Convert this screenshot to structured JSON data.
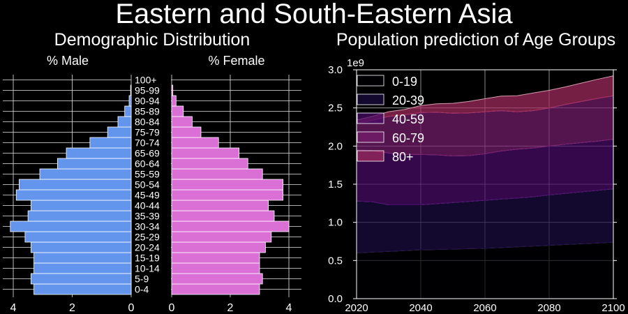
{
  "suptitle": "Eastern and South-Eastern Asia",
  "chart_data": [
    {
      "type": "bar",
      "title": "Demographic Distribution",
      "left_label": "% Male",
      "right_label": "% Female",
      "categories": [
        "0-4",
        "5-9",
        "10-14",
        "15-19",
        "20-24",
        "25-29",
        "30-34",
        "35-39",
        "40-44",
        "45-49",
        "50-54",
        "55-59",
        "60-64",
        "65-69",
        "70-74",
        "75-79",
        "80-84",
        "85-89",
        "90-94",
        "95-99",
        "100+"
      ],
      "series": [
        {
          "name": "% Male",
          "values": [
            3.3,
            3.4,
            3.3,
            3.3,
            3.4,
            3.6,
            4.1,
            3.5,
            3.4,
            3.9,
            3.8,
            3.1,
            2.5,
            2.2,
            1.4,
            0.8,
            0.45,
            0.22,
            0.07,
            0.02,
            0.0
          ]
        },
        {
          "name": "% Female",
          "values": [
            3.0,
            3.1,
            3.0,
            3.0,
            3.2,
            3.4,
            4.0,
            3.5,
            3.3,
            3.8,
            3.8,
            3.1,
            2.6,
            2.3,
            1.6,
            1.0,
            0.7,
            0.4,
            0.15,
            0.04,
            0.0
          ]
        }
      ],
      "colors": {
        "male": "#6495ed",
        "female": "#da70d6"
      },
      "xlim_male": [
        4.3,
        0
      ],
      "xlim_female": [
        0,
        4.3
      ],
      "xticks_male": [
        4,
        2,
        0
      ],
      "xticks_female": [
        0,
        2,
        4
      ],
      "grid": true
    },
    {
      "type": "area",
      "title": "Population prediction of Age Groups",
      "offset_label": "1e9",
      "x": [
        2020,
        2025,
        2030,
        2035,
        2040,
        2045,
        2050,
        2055,
        2060,
        2065,
        2070,
        2075,
        2080,
        2085,
        2090,
        2095,
        2100
      ],
      "series": [
        {
          "name": "0-19",
          "values": [
            0.6,
            0.61,
            0.62,
            0.63,
            0.64,
            0.645,
            0.65,
            0.655,
            0.66,
            0.67,
            0.68,
            0.69,
            0.7,
            0.71,
            0.72,
            0.73,
            0.74
          ],
          "color": "#000004"
        },
        {
          "name": "20-39",
          "values": [
            0.68,
            0.66,
            0.61,
            0.6,
            0.59,
            0.6,
            0.61,
            0.62,
            0.63,
            0.635,
            0.64,
            0.645,
            0.66,
            0.67,
            0.68,
            0.69,
            0.7
          ],
          "color": "#1b0c41"
        },
        {
          "name": "40-59",
          "values": [
            0.67,
            0.67,
            0.68,
            0.66,
            0.66,
            0.64,
            0.61,
            0.6,
            0.61,
            0.63,
            0.64,
            0.64,
            0.64,
            0.645,
            0.645,
            0.645,
            0.65
          ],
          "color": "#4a0c6b"
        },
        {
          "name": "60-79",
          "values": [
            0.35,
            0.4,
            0.48,
            0.52,
            0.55,
            0.56,
            0.56,
            0.56,
            0.55,
            0.53,
            0.49,
            0.49,
            0.5,
            0.52,
            0.54,
            0.56,
            0.57
          ],
          "color": "#781c6d"
        },
        {
          "name": "80+",
          "values": [
            0.04,
            0.05,
            0.06,
            0.07,
            0.09,
            0.11,
            0.13,
            0.15,
            0.17,
            0.19,
            0.21,
            0.23,
            0.23,
            0.23,
            0.24,
            0.25,
            0.26
          ],
          "color": "#a52c60"
        }
      ],
      "legend_colors": [
        "#000004",
        "#1b0c41",
        "#4a0c6b",
        "#781c6d",
        "#a52c60"
      ],
      "xlim": [
        2020,
        2100
      ],
      "ylim": [
        0.0,
        3.0
      ],
      "xticks": [
        2020,
        2040,
        2060,
        2080,
        2100
      ],
      "yticks": [
        0.0,
        0.5,
        1.0,
        1.5,
        2.0,
        2.5,
        3.0
      ],
      "ytick_labels": [
        "0.0",
        "0.5",
        "1.0",
        "1.5",
        "2.0",
        "2.5",
        "3.0"
      ],
      "legend_position": "upper-left",
      "grid": true
    }
  ]
}
